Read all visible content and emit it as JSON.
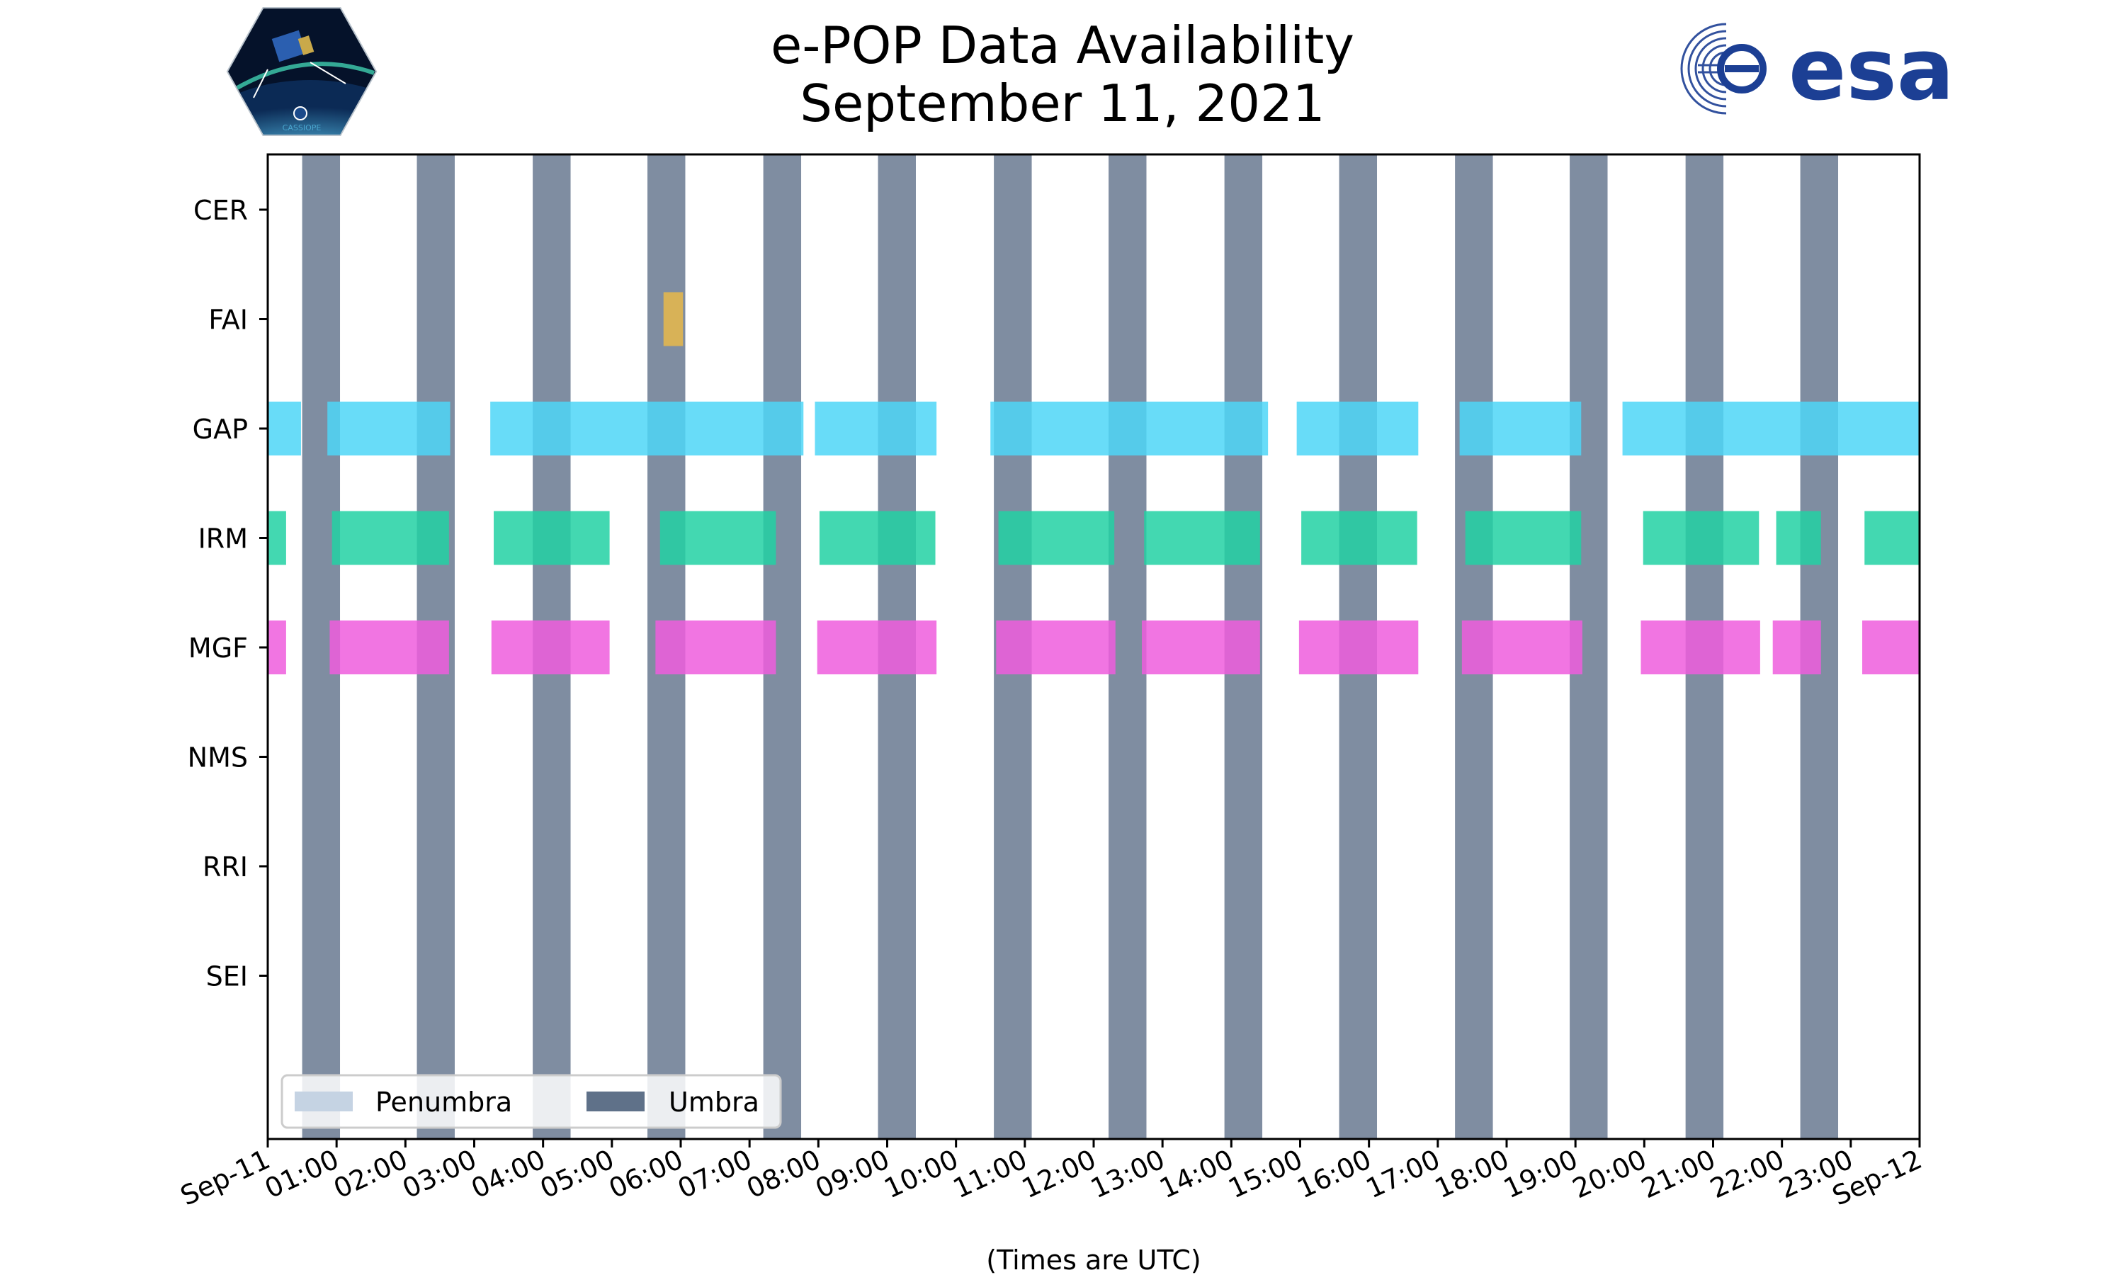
{
  "header": {
    "title_line1": "e-POP Data Availability",
    "title_line2": "September 11, 2021",
    "logo_left_text": "CASSIOPE",
    "logo_right_text": "esa"
  },
  "chart_data": {
    "type": "timeline",
    "title": "e-POP Data Availability September 11, 2021",
    "xlabel": "(Times are UTC)",
    "xlim": [
      "2021-09-11 00:00",
      "2021-09-12 00:00"
    ],
    "x_tick_labels": [
      "Sep-11",
      "01:00",
      "02:00",
      "03:00",
      "04:00",
      "05:00",
      "06:00",
      "07:00",
      "08:00",
      "09:00",
      "10:00",
      "11:00",
      "12:00",
      "13:00",
      "14:00",
      "15:00",
      "16:00",
      "17:00",
      "18:00",
      "19:00",
      "20:00",
      "21:00",
      "22:00",
      "23:00",
      "Sep-12"
    ],
    "instruments": [
      "CER",
      "FAI",
      "GAP",
      "IRM",
      "MGF",
      "NMS",
      "RRI",
      "SEI"
    ],
    "colors": {
      "FAI": "#e8b94a",
      "GAP": "#4dd6f7",
      "IRM": "#22d1a3",
      "MGF": "#ee5ddd",
      "Umbra": "#5f7189",
      "Penumbra": "#c5d3e3"
    },
    "legend": {
      "position": "lower-left",
      "entries": [
        {
          "label": "Penumbra",
          "color": "#c5d3e3"
        },
        {
          "label": "Umbra",
          "color": "#5f7189"
        }
      ]
    },
    "umbra": [
      [
        "00:30",
        "01:03"
      ],
      [
        "02:10",
        "02:43"
      ],
      [
        "03:51",
        "04:24"
      ],
      [
        "05:31",
        "06:04"
      ],
      [
        "07:12",
        "07:45"
      ],
      [
        "08:52",
        "09:25"
      ],
      [
        "10:33",
        "11:06"
      ],
      [
        "12:13",
        "12:46"
      ],
      [
        "13:54",
        "14:27"
      ],
      [
        "15:34",
        "16:07"
      ],
      [
        "17:15",
        "17:48"
      ],
      [
        "18:55",
        "19:28"
      ],
      [
        "20:36",
        "21:09"
      ],
      [
        "22:16",
        "22:49"
      ]
    ],
    "series": [
      {
        "name": "CER",
        "segments": []
      },
      {
        "name": "FAI",
        "segments": [
          [
            "05:45",
            "06:02"
          ]
        ]
      },
      {
        "name": "GAP",
        "segments": [
          [
            "00:00",
            "00:29"
          ],
          [
            "00:52",
            "02:39"
          ],
          [
            "03:14",
            "07:47"
          ],
          [
            "07:57",
            "09:43"
          ],
          [
            "10:30",
            "14:32"
          ],
          [
            "14:57",
            "16:43"
          ],
          [
            "17:19",
            "19:05"
          ],
          [
            "19:41",
            "24:00"
          ]
        ]
      },
      {
        "name": "IRM",
        "segments": [
          [
            "00:00",
            "00:16"
          ],
          [
            "00:56",
            "02:38"
          ],
          [
            "03:17",
            "04:58"
          ],
          [
            "05:42",
            "07:23"
          ],
          [
            "08:01",
            "09:42"
          ],
          [
            "10:37",
            "12:18"
          ],
          [
            "12:44",
            "14:25"
          ],
          [
            "15:01",
            "16:42"
          ],
          [
            "17:24",
            "19:05"
          ],
          [
            "19:59",
            "21:40"
          ],
          [
            "21:55",
            "22:34"
          ],
          [
            "23:12",
            "24:00"
          ]
        ]
      },
      {
        "name": "MGF",
        "segments": [
          [
            "00:00",
            "00:16"
          ],
          [
            "00:54",
            "02:38"
          ],
          [
            "03:15",
            "04:58"
          ],
          [
            "05:38",
            "07:23"
          ],
          [
            "07:59",
            "09:43"
          ],
          [
            "10:35",
            "12:19"
          ],
          [
            "12:42",
            "14:25"
          ],
          [
            "14:59",
            "16:43"
          ],
          [
            "17:21",
            "19:06"
          ],
          [
            "19:57",
            "21:41"
          ],
          [
            "21:52",
            "22:34"
          ],
          [
            "23:10",
            "24:00"
          ]
        ]
      },
      {
        "name": "NMS",
        "segments": []
      },
      {
        "name": "RRI",
        "segments": []
      },
      {
        "name": "SEI",
        "segments": []
      }
    ]
  }
}
